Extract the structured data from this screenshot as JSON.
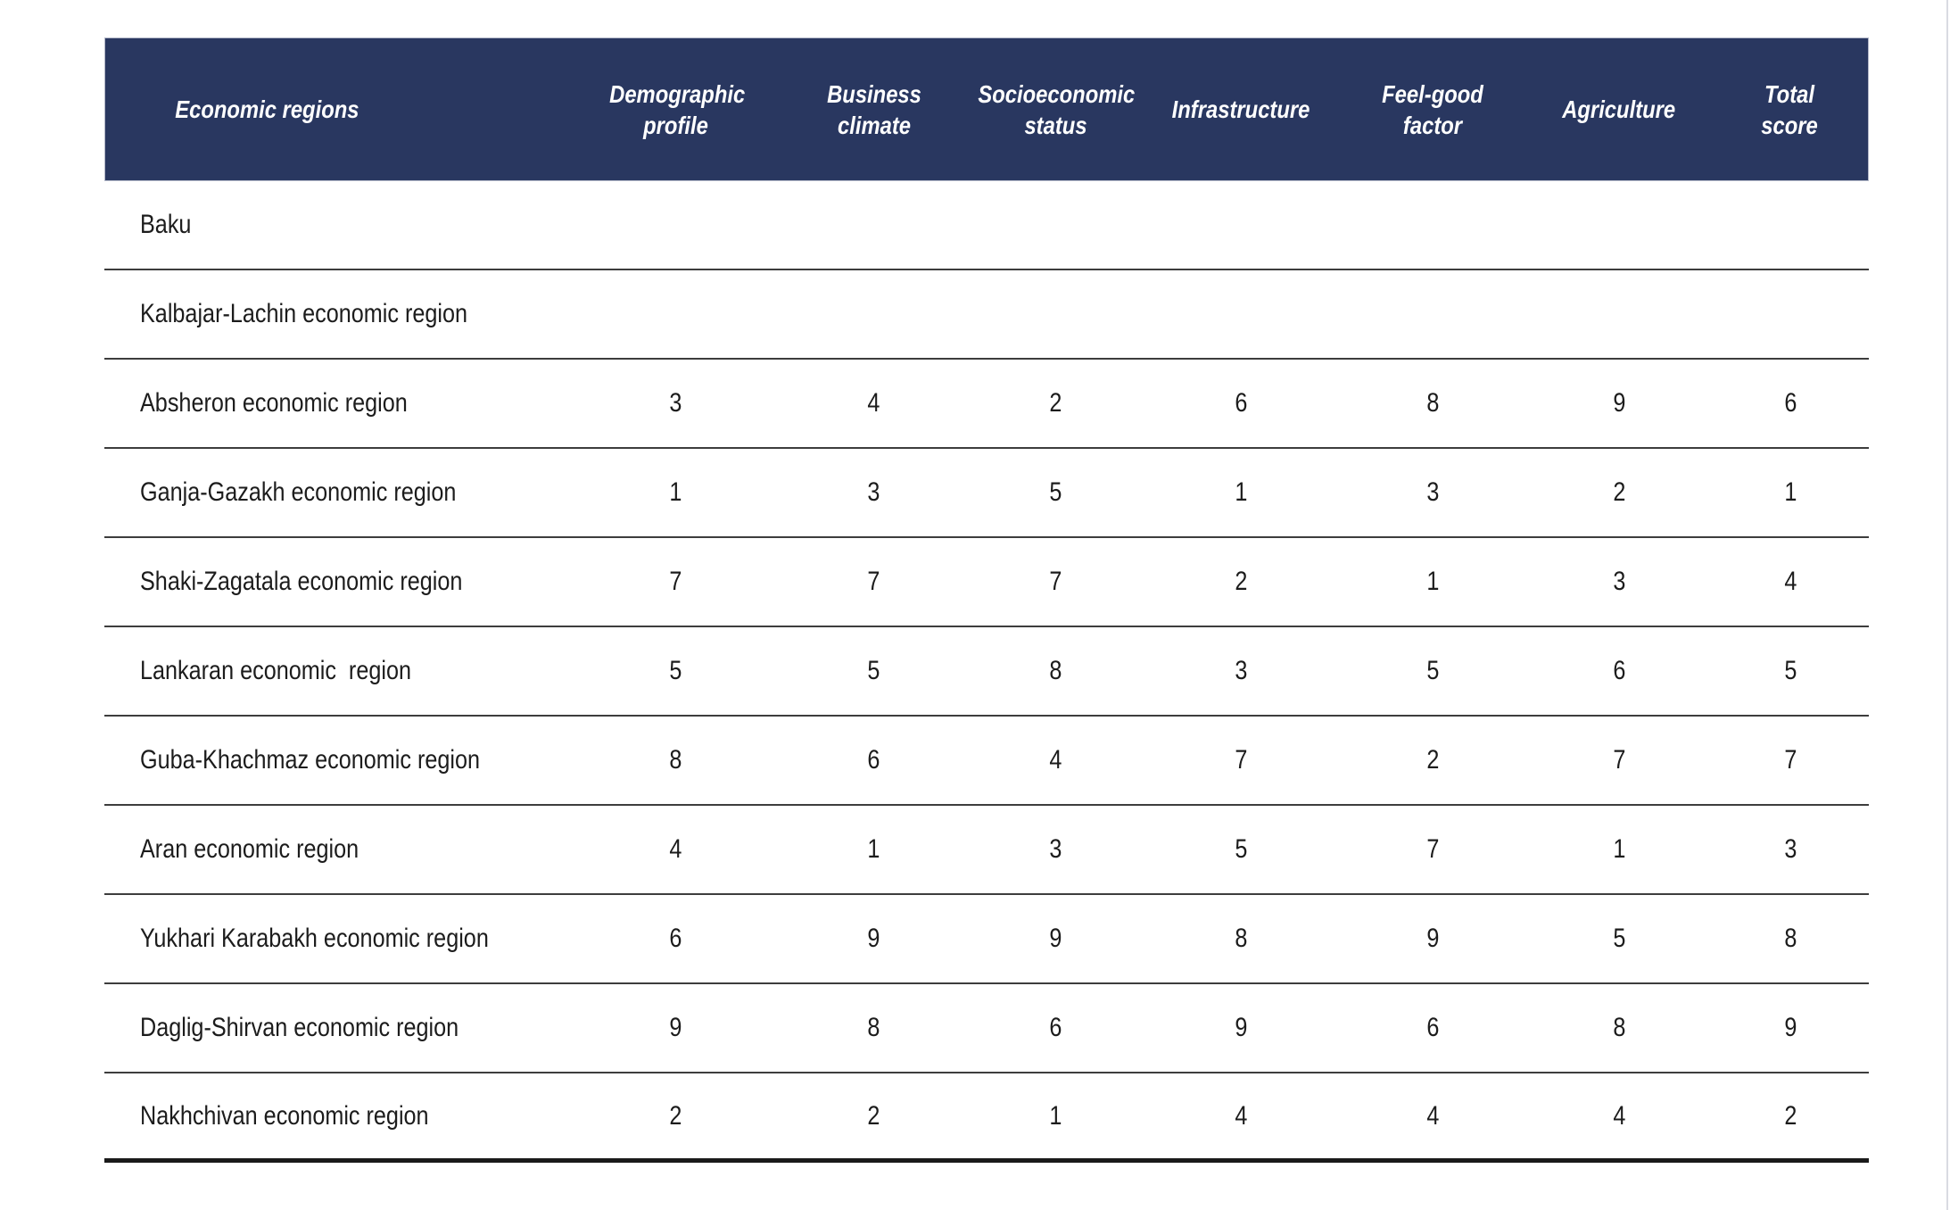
{
  "colors": {
    "header_background": "#293760",
    "header_text": "#ffffff",
    "body_text": "#1c1c1c",
    "row_divider": "#3d3d3d",
    "bottom_border": "#1a1a1a",
    "page_background": "#ffffff"
  },
  "table": {
    "columns": [
      "Economic regions",
      "Demographic profile",
      "Business climate",
      "Socioeconomic status",
      "Infrastructure",
      "Feel-good factor",
      "Agriculture",
      "Total score"
    ],
    "rows": [
      {
        "region": "Baku",
        "values": [
          "",
          "",
          "",
          "",
          "",
          "",
          ""
        ]
      },
      {
        "region": "Kalbajar-Lachin economic region",
        "values": [
          "",
          "",
          "",
          "",
          "",
          "",
          ""
        ]
      },
      {
        "region": "Absheron economic region",
        "values": [
          "3",
          "4",
          "2",
          "6",
          "8",
          "9",
          "6"
        ]
      },
      {
        "region": "Ganja-Gazakh economic region",
        "values": [
          "1",
          "3",
          "5",
          "1",
          "3",
          "2",
          "1"
        ]
      },
      {
        "region": "Shaki-Zagatala economic region",
        "values": [
          "7",
          "7",
          "7",
          "2",
          "1",
          "3",
          "4"
        ]
      },
      {
        "region": "Lankaran economic  region",
        "values": [
          "5",
          "5",
          "8",
          "3",
          "5",
          "6",
          "5"
        ]
      },
      {
        "region": "Guba-Khachmaz economic region",
        "values": [
          "8",
          "6",
          "4",
          "7",
          "2",
          "7",
          "7"
        ]
      },
      {
        "region": "Aran economic region",
        "values": [
          "4",
          "1",
          "3",
          "5",
          "7",
          "1",
          "3"
        ]
      },
      {
        "region": "Yukhari Karabakh economic region",
        "values": [
          "6",
          "9",
          "9",
          "8",
          "9",
          "5",
          "8"
        ]
      },
      {
        "region": "Daglig-Shirvan economic region",
        "values": [
          "9",
          "8",
          "6",
          "9",
          "6",
          "8",
          "9"
        ]
      },
      {
        "region": "Nakhchivan economic region",
        "values": [
          "2",
          "2",
          "1",
          "4",
          "4",
          "4",
          "2"
        ]
      }
    ]
  },
  "chart_data": {
    "type": "table",
    "title": "",
    "columns": [
      "Economic regions",
      "Demographic profile",
      "Business climate",
      "Socioeconomic status",
      "Infrastructure",
      "Feel-good factor",
      "Agriculture",
      "Total score"
    ],
    "rows": [
      [
        "Baku",
        null,
        null,
        null,
        null,
        null,
        null,
        null
      ],
      [
        "Kalbajar-Lachin economic region",
        null,
        null,
        null,
        null,
        null,
        null,
        null
      ],
      [
        "Absheron economic region",
        3,
        4,
        2,
        6,
        8,
        9,
        6
      ],
      [
        "Ganja-Gazakh economic region",
        1,
        3,
        5,
        1,
        3,
        2,
        1
      ],
      [
        "Shaki-Zagatala economic region",
        7,
        7,
        7,
        2,
        1,
        3,
        4
      ],
      [
        "Lankaran economic  region",
        5,
        5,
        8,
        3,
        5,
        6,
        5
      ],
      [
        "Guba-Khachmaz economic region",
        8,
        6,
        4,
        7,
        2,
        7,
        7
      ],
      [
        "Aran economic region",
        4,
        1,
        3,
        5,
        7,
        1,
        3
      ],
      [
        "Yukhari Karabakh economic region",
        6,
        9,
        9,
        8,
        9,
        5,
        8
      ],
      [
        "Daglig-Shirvan economic region",
        9,
        8,
        6,
        9,
        6,
        8,
        9
      ],
      [
        "Nakhchivan economic region",
        2,
        2,
        1,
        4,
        4,
        4,
        2
      ]
    ]
  }
}
